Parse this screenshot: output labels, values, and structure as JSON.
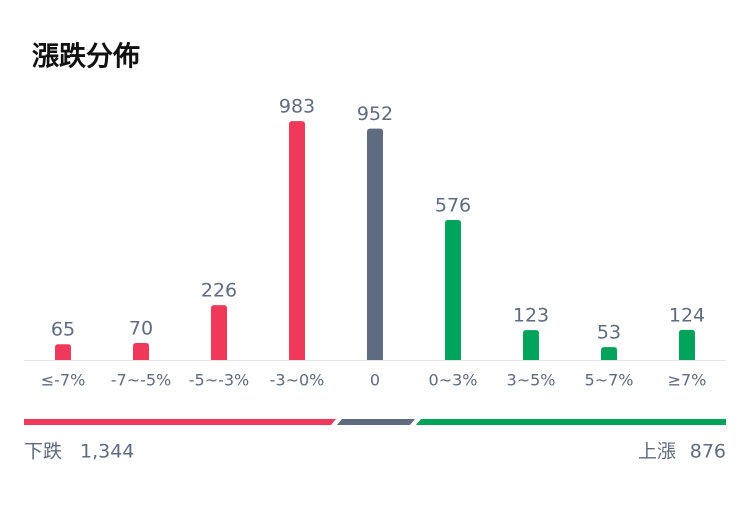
{
  "chart_data": {
    "type": "bar",
    "title": "漲跌分佈",
    "categories": [
      "≤-7%",
      "-7~-5%",
      "-5~-3%",
      "-3~0%",
      "0",
      "0~3%",
      "3~5%",
      "5~7%",
      "≥7%"
    ],
    "values": [
      65,
      70,
      226,
      983,
      952,
      576,
      123,
      53,
      124
    ],
    "colors": [
      "#f0395a",
      "#f0395a",
      "#f0395a",
      "#f0395a",
      "#5f6b80",
      "#00a35a",
      "#00a35a",
      "#00a35a",
      "#00a35a"
    ],
    "ylim": [
      0,
      1000
    ]
  },
  "summary": {
    "down_label": "下跌",
    "down_count": "1,344",
    "up_label": "上漲",
    "up_count": "876"
  }
}
